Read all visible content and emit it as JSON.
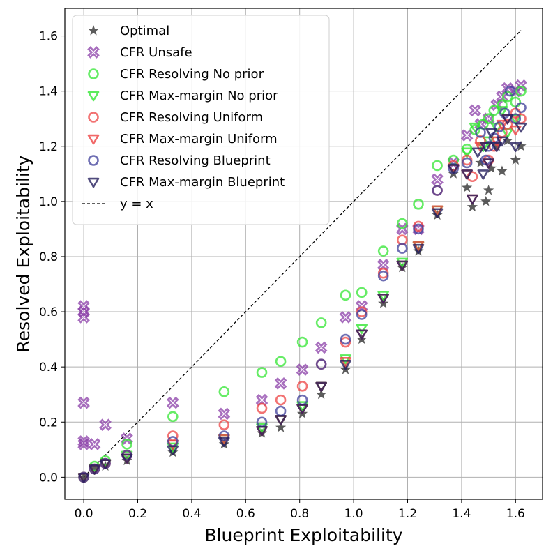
{
  "chart_data": {
    "type": "scatter",
    "title": "",
    "xlabel": "Blueprint Exploitability",
    "ylabel": "Resolved Exploitability",
    "xlim": [
      -0.07,
      1.7
    ],
    "ylim": [
      -0.08,
      1.7
    ],
    "xticks": [
      "0.0",
      "0.2",
      "0.4",
      "0.6",
      "0.8",
      "1.0",
      "1.2",
      "1.4",
      "1.6"
    ],
    "yticks": [
      "0.0",
      "0.2",
      "0.4",
      "0.6",
      "0.8",
      "1.0",
      "1.2",
      "1.4",
      "1.6"
    ],
    "grid": true,
    "legend_position": "top-left",
    "series": [
      {
        "name": "Optimal",
        "marker": "star",
        "color": "#404040",
        "x": [
          0.0,
          0.04,
          0.08,
          0.16,
          0.33,
          0.52,
          0.66,
          0.73,
          0.81,
          0.88,
          0.97,
          1.03,
          1.11,
          1.18,
          1.24,
          1.31,
          1.37,
          1.42,
          1.44,
          1.47,
          1.49,
          1.5,
          1.51,
          1.53,
          1.55,
          1.57,
          1.6,
          1.62
        ],
        "y": [
          0.0,
          0.03,
          0.04,
          0.06,
          0.09,
          0.12,
          0.16,
          0.18,
          0.23,
          0.3,
          0.39,
          0.5,
          0.63,
          0.76,
          0.82,
          0.95,
          1.1,
          1.05,
          0.98,
          1.14,
          1.0,
          1.04,
          1.12,
          1.2,
          1.11,
          1.22,
          1.15,
          1.2
        ]
      },
      {
        "name": "CFR Unsafe",
        "marker": "x",
        "color": "#8b3fa8",
        "x": [
          0.0,
          0.0,
          0.0,
          0.0,
          0.0,
          0.0,
          0.04,
          0.08,
          0.16,
          0.33,
          0.52,
          0.66,
          0.73,
          0.81,
          0.88,
          0.97,
          1.03,
          1.11,
          1.18,
          1.24,
          1.31,
          1.37,
          1.42,
          1.45,
          1.47,
          1.5,
          1.53,
          1.55,
          1.57,
          1.6,
          1.62
        ],
        "y": [
          0.62,
          0.6,
          0.58,
          0.27,
          0.13,
          0.12,
          0.12,
          0.19,
          0.14,
          0.27,
          0.23,
          0.28,
          0.34,
          0.39,
          0.47,
          0.58,
          0.62,
          0.77,
          0.9,
          0.9,
          1.08,
          1.14,
          1.24,
          1.33,
          1.28,
          1.3,
          1.35,
          1.38,
          1.41,
          1.4,
          1.42
        ]
      },
      {
        "name": "CFR Resolving No prior",
        "marker": "circle",
        "color": "#33e633",
        "x": [
          0.0,
          0.04,
          0.08,
          0.16,
          0.33,
          0.52,
          0.66,
          0.73,
          0.81,
          0.88,
          0.97,
          1.03,
          1.11,
          1.18,
          1.24,
          1.31,
          1.37,
          1.42,
          1.45,
          1.48,
          1.5,
          1.52,
          1.55,
          1.57,
          1.6,
          1.62
        ],
        "y": [
          0.0,
          0.04,
          0.06,
          0.12,
          0.22,
          0.31,
          0.38,
          0.42,
          0.49,
          0.56,
          0.66,
          0.67,
          0.82,
          0.92,
          0.99,
          1.13,
          1.15,
          1.19,
          1.26,
          1.28,
          1.3,
          1.33,
          1.35,
          1.38,
          1.36,
          1.4
        ]
      },
      {
        "name": "CFR Max-margin No prior",
        "marker": "triangle-down",
        "color": "#33e633",
        "x": [
          0.0,
          0.04,
          0.08,
          0.16,
          0.33,
          0.52,
          0.66,
          0.73,
          0.81,
          0.88,
          0.97,
          1.03,
          1.11,
          1.18,
          1.24,
          1.31,
          1.37,
          1.42,
          1.45,
          1.48,
          1.5,
          1.53,
          1.55,
          1.57,
          1.6
        ],
        "y": [
          0.0,
          0.03,
          0.05,
          0.08,
          0.11,
          0.14,
          0.18,
          0.21,
          0.26,
          0.33,
          0.43,
          0.54,
          0.66,
          0.78,
          0.84,
          0.97,
          1.12,
          1.18,
          1.27,
          1.2,
          1.22,
          1.27,
          1.33,
          1.25,
          1.3
        ]
      },
      {
        "name": "CFR Resolving Uniform",
        "marker": "circle",
        "color": "#ee4444",
        "x": [
          0.0,
          0.04,
          0.08,
          0.16,
          0.33,
          0.52,
          0.66,
          0.73,
          0.81,
          0.88,
          0.97,
          1.03,
          1.11,
          1.18,
          1.24,
          1.31,
          1.37,
          1.42,
          1.44,
          1.47,
          1.5,
          1.52,
          1.55,
          1.57,
          1.6,
          1.62
        ],
        "y": [
          0.0,
          0.03,
          0.05,
          0.08,
          0.15,
          0.19,
          0.25,
          0.28,
          0.33,
          0.41,
          0.49,
          0.6,
          0.74,
          0.86,
          0.91,
          1.04,
          1.13,
          1.15,
          1.09,
          1.22,
          1.15,
          1.2,
          1.25,
          1.28,
          1.32,
          1.3
        ]
      },
      {
        "name": "CFR Max-margin Uniform",
        "marker": "triangle-down",
        "color": "#ee4444",
        "x": [
          0.0,
          0.04,
          0.08,
          0.16,
          0.33,
          0.52,
          0.66,
          0.73,
          0.81,
          0.88,
          0.97,
          1.03,
          1.11,
          1.18,
          1.24,
          1.31,
          1.37,
          1.42,
          1.44,
          1.47,
          1.5,
          1.53,
          1.55,
          1.57,
          1.6
        ],
        "y": [
          0.0,
          0.03,
          0.05,
          0.07,
          0.12,
          0.14,
          0.17,
          0.21,
          0.25,
          0.33,
          0.42,
          0.52,
          0.65,
          0.77,
          0.84,
          0.97,
          1.12,
          1.1,
          1.01,
          1.2,
          1.14,
          1.22,
          1.28,
          1.3,
          1.26
        ]
      },
      {
        "name": "CFR Resolving Blueprint",
        "marker": "circle",
        "color": "#3d3d99",
        "x": [
          0.0,
          0.04,
          0.08,
          0.16,
          0.33,
          0.52,
          0.66,
          0.73,
          0.81,
          0.88,
          0.97,
          1.03,
          1.11,
          1.18,
          1.24,
          1.31,
          1.37,
          1.42,
          1.47,
          1.49,
          1.5,
          1.52,
          1.54,
          1.56,
          1.58,
          1.6,
          1.62
        ],
        "y": [
          0.0,
          0.03,
          0.05,
          0.08,
          0.13,
          0.15,
          0.2,
          0.24,
          0.28,
          0.41,
          0.5,
          0.59,
          0.73,
          0.83,
          0.9,
          1.04,
          1.12,
          1.14,
          1.25,
          1.15,
          1.2,
          1.23,
          1.27,
          1.32,
          1.4,
          1.3,
          1.34
        ]
      },
      {
        "name": "CFR Max-margin Blueprint",
        "marker": "triangle-down",
        "color": "#241e5c",
        "x": [
          0.0,
          0.04,
          0.08,
          0.16,
          0.33,
          0.52,
          0.66,
          0.73,
          0.81,
          0.88,
          0.97,
          1.03,
          1.11,
          1.18,
          1.24,
          1.31,
          1.37,
          1.42,
          1.44,
          1.46,
          1.48,
          1.49,
          1.5,
          1.51,
          1.53,
          1.55,
          1.57,
          1.6,
          1.62
        ],
        "y": [
          0.0,
          0.03,
          0.05,
          0.07,
          0.1,
          0.13,
          0.17,
          0.21,
          0.25,
          0.33,
          0.41,
          0.52,
          0.65,
          0.77,
          0.83,
          0.96,
          1.12,
          1.1,
          1.01,
          1.18,
          1.1,
          1.2,
          1.14,
          1.25,
          1.2,
          1.22,
          1.3,
          1.2,
          1.27
        ]
      },
      {
        "name": "y = x",
        "marker": "dashed-line",
        "color": "#000000",
        "x": [
          0.0,
          1.62
        ],
        "y": [
          0.0,
          1.62
        ]
      }
    ]
  }
}
